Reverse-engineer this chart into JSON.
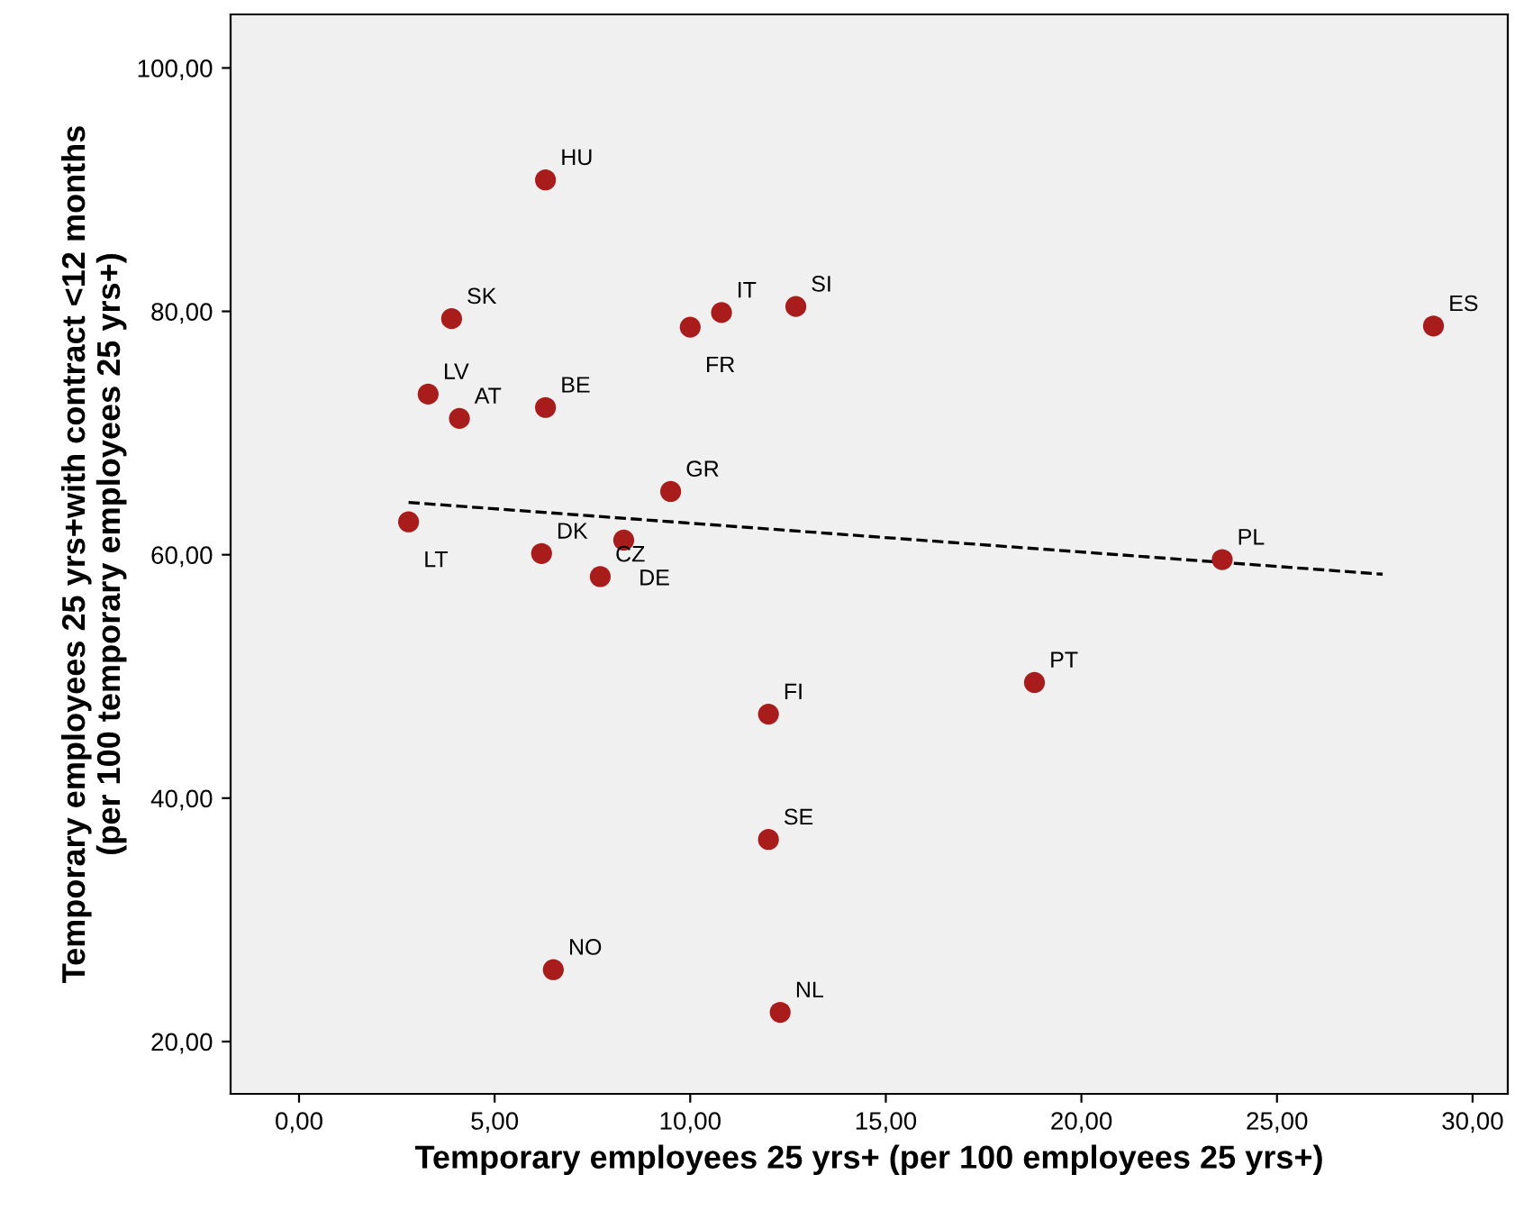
{
  "chart_data": {
    "type": "scatter",
    "xlabel": "Temporary employees 25 yrs+ (per 100 employees 25 yrs+)",
    "ylabel": "Temporary employees 25 yrs+with contract <12 months\n(per 100 temporary employees 25 yrs+)",
    "xlim": [
      -1.75,
      30.9
    ],
    "ylim": [
      15.7,
      104.4
    ],
    "xticks": [
      {
        "value": 0,
        "label": "0,00"
      },
      {
        "value": 5,
        "label": "5,00"
      },
      {
        "value": 10,
        "label": "10,00"
      },
      {
        "value": 15,
        "label": "15,00"
      },
      {
        "value": 20,
        "label": "20,00"
      },
      {
        "value": 25,
        "label": "25,00"
      },
      {
        "value": 30,
        "label": "30,00"
      }
    ],
    "yticks": [
      {
        "value": 20,
        "label": "20,00"
      },
      {
        "value": 40,
        "label": "40,00"
      },
      {
        "value": 60,
        "label": "60,00"
      },
      {
        "value": 80,
        "label": "80,00"
      },
      {
        "value": 100,
        "label": "100,00"
      }
    ],
    "grid": false,
    "legend": false,
    "marker": "circle",
    "series": [
      {
        "color": "#a81c1c",
        "x": [
          6.3,
          3.9,
          10.8,
          12.7,
          10.0,
          29.0,
          3.3,
          6.3,
          4.1,
          9.5,
          2.8,
          6.2,
          8.3,
          7.7,
          23.6,
          18.8,
          12.0,
          12.0,
          6.5,
          12.3
        ],
        "values": [
          90.8,
          79.4,
          79.9,
          80.4,
          78.7,
          78.8,
          73.2,
          72.1,
          71.2,
          65.2,
          62.7,
          60.1,
          61.2,
          58.2,
          59.6,
          49.5,
          46.9,
          36.6,
          25.9,
          22.4
        ]
      },
      {
        "type": "line",
        "color": "#000000",
        "line_style": "dashed",
        "marker": "none",
        "x": [
          2.8,
          27.7
        ],
        "values": [
          64.3,
          58.4
        ]
      }
    ],
    "annotations": [
      {
        "text": "HU",
        "x": 6.3,
        "y": 90.8
      },
      {
        "text": "SK",
        "x": 3.9,
        "y": 79.4
      },
      {
        "text": "IT",
        "x": 10.8,
        "y": 79.9
      },
      {
        "text": "SI",
        "x": 12.7,
        "y": 80.4
      },
      {
        "text": "FR",
        "x": 10.0,
        "y": 78.7
      },
      {
        "text": "ES",
        "x": 29.0,
        "y": 78.8
      },
      {
        "text": "LV",
        "x": 3.3,
        "y": 73.2
      },
      {
        "text": "BE",
        "x": 6.3,
        "y": 72.1
      },
      {
        "text": "AT",
        "x": 4.1,
        "y": 71.2
      },
      {
        "text": "GR",
        "x": 9.5,
        "y": 65.2
      },
      {
        "text": "LT",
        "x": 2.8,
        "y": 62.7
      },
      {
        "text": "DK",
        "x": 6.2,
        "y": 60.1
      },
      {
        "text": "DE",
        "x": 8.3,
        "y": 61.2
      },
      {
        "text": "CZ",
        "x": 7.7,
        "y": 58.2
      },
      {
        "text": "PL",
        "x": 23.6,
        "y": 59.6
      },
      {
        "text": "PT",
        "x": 18.8,
        "y": 49.5
      },
      {
        "text": "FI",
        "x": 12.0,
        "y": 46.9
      },
      {
        "text": "SE",
        "x": 12.0,
        "y": 36.6
      },
      {
        "text": "NO",
        "x": 6.5,
        "y": 25.9
      },
      {
        "text": "NL",
        "x": 12.3,
        "y": 22.4
      }
    ]
  }
}
